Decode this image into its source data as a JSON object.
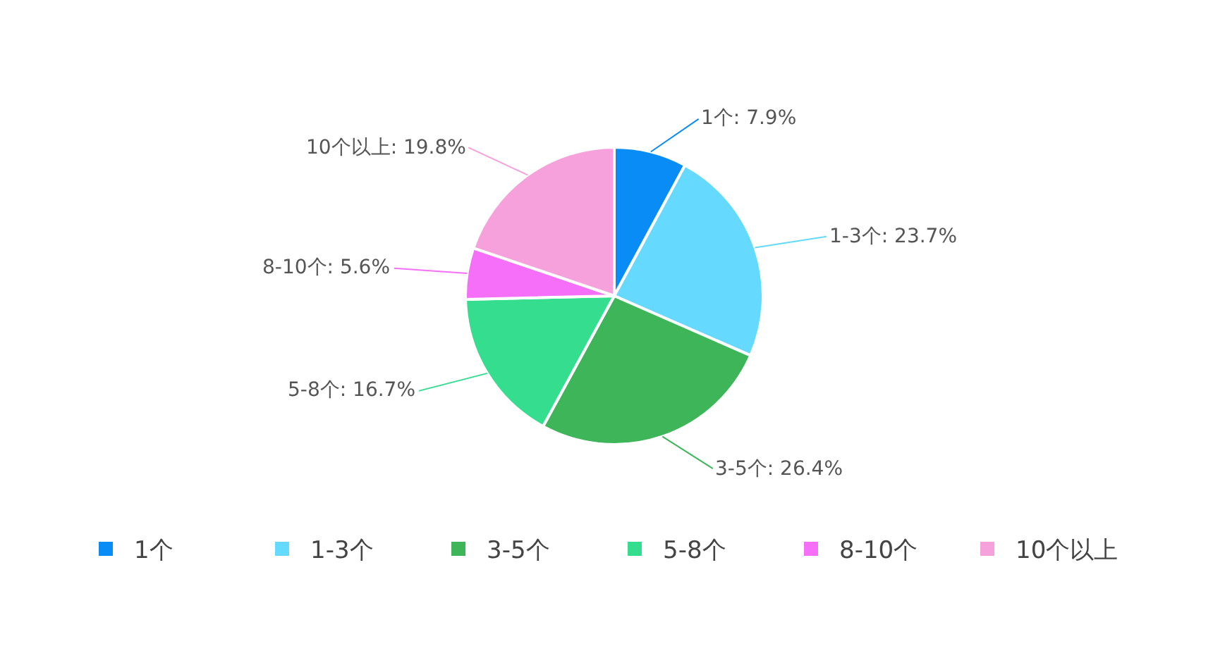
{
  "chart_data": {
    "type": "pie",
    "categories": [
      "1个",
      "1-3个",
      "3-5个",
      "5-8个",
      "8-10个",
      "10个以上"
    ],
    "values": [
      7.9,
      23.7,
      26.4,
      16.7,
      5.6,
      19.8
    ],
    "colors": [
      "#0a8cf7",
      "#66d9ff",
      "#3fb55a",
      "#35dd8f",
      "#f66ff8",
      "#f7a1dc"
    ],
    "value_labels": [
      "1个: 7.9%",
      "1-3个: 23.7%",
      "3-5个: 26.4%",
      "5-8个: 16.7%",
      "8-10个: 5.6%",
      "10个以上: 19.8%"
    ],
    "legend": "bottom"
  }
}
